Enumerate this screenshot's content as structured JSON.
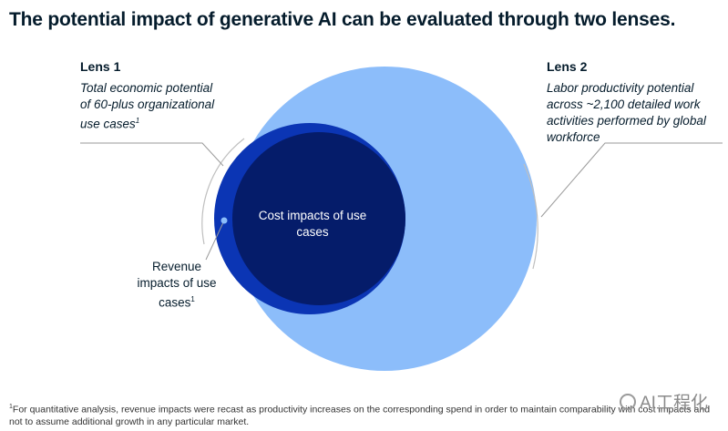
{
  "title": "The potential impact of generative AI can be evaluated through two lenses.",
  "lens1": {
    "heading": "Lens 1",
    "description": "Total economic potential of 60-plus organizational use cases",
    "footnote_marker": "1"
  },
  "lens2": {
    "heading": "Lens 2",
    "description": "Labor productivity potential across ~2,100 detailed work activities performed by global workforce"
  },
  "venn": {
    "inner_label": "Cost impacts of use cases",
    "crescent_label": "Revenue impacts of use cases",
    "crescent_marker": "1",
    "colors": {
      "large_circle": "#8cbdfa",
      "cost_circle": "#051c6a",
      "revenue_crescent": "#0b35b4"
    }
  },
  "footnote": {
    "marker": "1",
    "text": "For quantitative analysis, revenue impacts were recast as productivity increases on the corresponding spend in order to maintain comparability with cost impacts and not to assume additional growth in any particular market."
  },
  "watermark": {
    "text": "AI工程化",
    "icon": "wechat-icon"
  }
}
